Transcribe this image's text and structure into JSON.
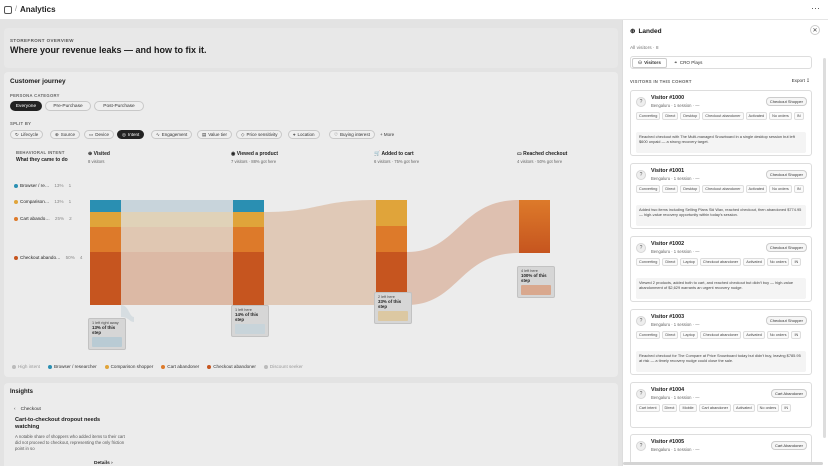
{
  "app": {
    "title": "Analytics",
    "separator": "/"
  },
  "overview": {
    "kicker": "STOREFRONT OVERVIEW",
    "headline": "Where your revenue leaks — and how to fix it."
  },
  "journey": {
    "title": "Customer journey",
    "persona_label": "PERSONA CATEGORY",
    "personas": [
      "Everyone",
      "Pre-Purchase",
      "Post-Purchase"
    ],
    "split_label": "SPLIT BY",
    "splits": [
      "Lifecycle",
      "Source",
      "Device",
      "Intent",
      "Engagement",
      "Value tier",
      "Price sensitivity",
      "Location",
      "Buying interest",
      "+ More"
    ],
    "intent_label": "BEHAVIORAL INTENT",
    "intent_question": "What they came to do",
    "stages": [
      {
        "name": "Visited",
        "sub": "8 visitors"
      },
      {
        "name": "Viewed a product",
        "sub": "7 visitors · 88% got here"
      },
      {
        "name": "Added to cart",
        "sub": "6 visitors · 75% got here"
      },
      {
        "name": "Reached checkout",
        "sub": "4 visitors · 50% got here"
      }
    ],
    "intents": [
      {
        "name": "Browser / re…",
        "pct": "13%",
        "count": "1",
        "color": "#2a8fb2"
      },
      {
        "name": "Comparison…",
        "pct": "13%",
        "count": "1",
        "color": "#e0a43a"
      },
      {
        "name": "Cart abando…",
        "pct": "25%",
        "count": "2",
        "color": "#dd7a2a"
      },
      {
        "name": "Checkout abando…",
        "pct": "50%",
        "count": "4",
        "color": "#c6551f"
      }
    ],
    "callouts": [
      {
        "top": "1 left right away",
        "main": "13% of this step"
      },
      {
        "top": "1 left here",
        "main": "14% of this step"
      },
      {
        "top": "2 left here",
        "main": "33% of this step"
      },
      {
        "top": "4 left here",
        "main": "100% of this step"
      }
    ],
    "legend": [
      "High intent",
      "Browser / researcher",
      "Comparison shopper",
      "Cart abandoner",
      "Checkout abandoner",
      "Discount seeker"
    ],
    "legend_colors": [
      "#bbbbbb",
      "#2a8fb2",
      "#e0a43a",
      "#dd7a2a",
      "#c6551f",
      "#bbbbbb"
    ]
  },
  "insights": {
    "title": "Insights",
    "category": "Checkout",
    "headline": "Cart-to-checkout dropout needs watching",
    "body": "A notable share of shoppers who added items to their cart did not proceed to checkout, representing the only friction point in so",
    "details": "Details"
  },
  "panel": {
    "title": "Landed",
    "subtitle": "All visitors · 8",
    "tabs": [
      "Visitors",
      "CRO Plays"
    ],
    "cohort_label": "VISITORS IN THIS COHORT",
    "export": "Export",
    "visitors": [
      {
        "name": "Visitor #1000",
        "meta": "Bengaluru · 1 session · —",
        "badge": "Checkout Shopper",
        "tags": [
          "Converting",
          "Direct",
          "Desktop",
          "Checkout abandoner",
          "Activated",
          "No orders",
          "IN"
        ],
        "note": "Reached checkout with The Multi-managed Snowboard in a single desktop session but left $600 unpaid — a strong recovery target."
      },
      {
        "name": "Visitor #1001",
        "meta": "Bengaluru · 1 session · —",
        "badge": "Checkout Shopper",
        "tags": [
          "Converting",
          "Direct",
          "Desktop",
          "Checkout abandoner",
          "Activated",
          "No orders",
          "IN"
        ],
        "note": "Added two items including Selling Plans Ski Wax, reached checkout, then abandoned $774.95 — high-value recovery opportunity within today's session."
      },
      {
        "name": "Visitor #1002",
        "meta": "Bengaluru · 1 session · —",
        "badge": "Checkout Shopper",
        "tags": [
          "Converting",
          "Direct",
          "Laptop",
          "Checkout abandoner",
          "Activated",
          "No orders",
          "IN"
        ],
        "note": "Viewed 2 products, added both to cart, and reached checkout but didn't buy — high-value abandonment of $2,629 warrants an urgent recovery nudge."
      },
      {
        "name": "Visitor #1003",
        "meta": "Bengaluru · 1 session · —",
        "badge": "Checkout Shopper",
        "tags": [
          "Converting",
          "Direct",
          "Laptop",
          "Checkout abandoner",
          "Activated",
          "No orders",
          "IN"
        ],
        "note": "Reached checkout for The Compare at Price Snowboard today but didn't buy, leaving $785.95 at risk — a timely recovery nudge could close the sale."
      },
      {
        "name": "Visitor #1004",
        "meta": "Bengaluru · 1 session · —",
        "badge": "Cart Abandoner",
        "tags": [
          "Cart intent",
          "Direct",
          "Mobile",
          "Cart abandoner",
          "Activated",
          "No orders",
          "IN"
        ],
        "note": ""
      },
      {
        "name": "Visitor #1005",
        "meta": "Bengaluru · 1 session · —",
        "badge": "Cart Abandoner",
        "tags": [],
        "note": ""
      }
    ]
  }
}
